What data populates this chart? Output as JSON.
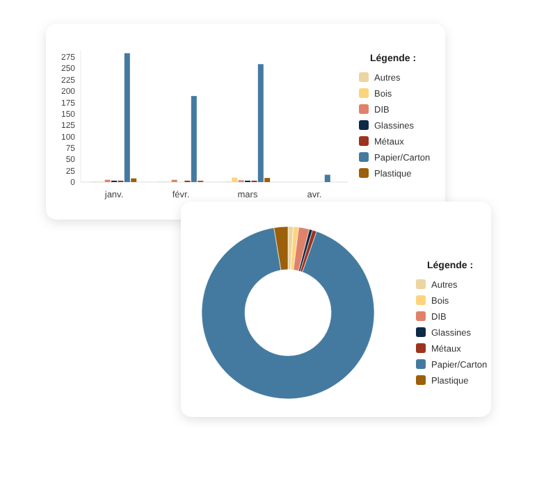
{
  "chart_data": [
    {
      "type": "bar",
      "categories": [
        "janv.",
        "févr.",
        "mars",
        "avr."
      ],
      "legend_title": "Légende :",
      "legend": "right",
      "grid": false,
      "ylim": [
        0,
        290
      ],
      "yticks": [
        0,
        25,
        50,
        75,
        100,
        125,
        150,
        175,
        200,
        225,
        250,
        275
      ],
      "series": [
        {
          "name": "Autres",
          "color": "#ebd5a0",
          "values": [
            1,
            1,
            1,
            0
          ]
        },
        {
          "name": "Bois",
          "color": "#fdd47e",
          "values": [
            1,
            1,
            10,
            0
          ]
        },
        {
          "name": "DIB",
          "color": "#e0826a",
          "values": [
            5,
            5,
            4,
            0
          ]
        },
        {
          "name": "Glassines",
          "color": "#0d2a48",
          "values": [
            3,
            0,
            3,
            0
          ]
        },
        {
          "name": "Métaux",
          "color": "#9c341d",
          "values": [
            3,
            3,
            3,
            0
          ]
        },
        {
          "name": "Papier/Carton",
          "color": "#447aa0",
          "values": [
            283,
            189,
            259,
            16
          ]
        },
        {
          "name": "Plastique",
          "color": "#9c5f0a",
          "values": [
            8,
            3,
            9,
            0
          ]
        }
      ]
    },
    {
      "type": "donut",
      "legend_title": "Légende :",
      "legend": "right",
      "categories": [
        "Autres",
        "Bois",
        "DIB",
        "Glassines",
        "Métaux",
        "Papier/Carton",
        "Plastique"
      ],
      "values": [
        1,
        1,
        2,
        0.6,
        0.8,
        92,
        2.6
      ],
      "colors": [
        "#ebd5a0",
        "#fdd47e",
        "#e0826a",
        "#0d2a48",
        "#9c341d",
        "#447aa0",
        "#9c5f0a"
      ]
    }
  ]
}
